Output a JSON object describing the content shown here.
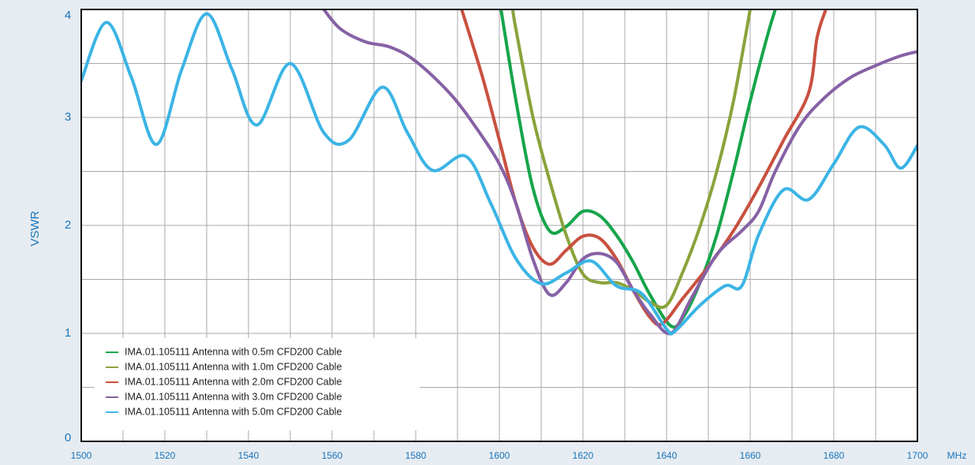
{
  "chart_data": {
    "type": "line",
    "xlabel": "MHz",
    "ylabel": "VSWR",
    "xlim": [
      1500,
      1700
    ],
    "xticks": [
      1500,
      1520,
      1540,
      1560,
      1580,
      1600,
      1620,
      1640,
      1660,
      1680,
      1700
    ],
    "x_minor_ticks": [
      1510,
      1530,
      1550,
      1570,
      1590,
      1610,
      1630,
      1650,
      1670,
      1690
    ],
    "ylim": [
      0,
      4
    ],
    "yticks": [
      0,
      1,
      2,
      3,
      4
    ],
    "y_minor_ticks": [
      0.5,
      1.5,
      2.5,
      3.5
    ],
    "grid": true,
    "legend": "lower left",
    "series": [
      {
        "name": "IMA.01.105111 Antenna with 0.5m CFD200 Cable",
        "color": "#16a54b",
        "x": [
          1600.4,
          1604,
          1608,
          1612,
          1616,
          1620,
          1624,
          1628,
          1632,
          1636,
          1641,
          1644,
          1648,
          1652,
          1656,
          1660,
          1664,
          1666
        ],
        "values": [
          4.0,
          3.15,
          2.35,
          1.95,
          1.99,
          2.13,
          2.09,
          1.91,
          1.66,
          1.36,
          1.07,
          1.15,
          1.47,
          1.91,
          2.5,
          3.15,
          3.74,
          4.0
        ]
      },
      {
        "name": "IMA.01.105111 Antenna with 1.0m CFD200 Cable",
        "color": "#8aa33b",
        "x": [
          1603.2,
          1604,
          1608,
          1612,
          1616,
          1620,
          1624,
          1628,
          1632,
          1636,
          1640,
          1644,
          1648,
          1652,
          1656,
          1660
        ],
        "values": [
          4.0,
          3.81,
          3.01,
          2.42,
          1.91,
          1.55,
          1.47,
          1.47,
          1.4,
          1.29,
          1.26,
          1.58,
          1.99,
          2.5,
          3.15,
          4.0
        ]
      },
      {
        "name": "IMA.01.105111 Antenna with 2.0m CFD200 Cable",
        "color": "#c9503f",
        "x": [
          1591,
          1596,
          1600,
          1604,
          1608,
          1612,
          1616,
          1620,
          1624,
          1628,
          1632,
          1636,
          1639,
          1644,
          1650,
          1656,
          1662,
          1668,
          1674,
          1676,
          1678
        ],
        "values": [
          4.0,
          3.37,
          2.79,
          2.2,
          1.8,
          1.64,
          1.77,
          1.9,
          1.88,
          1.69,
          1.4,
          1.15,
          1.09,
          1.33,
          1.62,
          1.95,
          2.35,
          2.79,
          3.23,
          3.74,
          3.99
        ]
      },
      {
        "name": "IMA.01.105111 Antenna with 3.0m CFD200 Cable",
        "color": "#8661a5",
        "x": [
          1558,
          1562,
          1568,
          1574,
          1580,
          1588,
          1594,
          1600,
          1604,
          1608,
          1612,
          1616,
          1620,
          1624,
          1628,
          1632,
          1636,
          1641,
          1646,
          1652,
          1658,
          1662,
          1666,
          1672,
          1678,
          1684,
          1690,
          1696,
          1700
        ],
        "values": [
          4.0,
          3.82,
          3.7,
          3.65,
          3.52,
          3.23,
          2.93,
          2.57,
          2.2,
          1.69,
          1.36,
          1.47,
          1.69,
          1.74,
          1.66,
          1.4,
          1.18,
          1.0,
          1.33,
          1.73,
          1.95,
          2.13,
          2.5,
          2.93,
          3.19,
          3.37,
          3.48,
          3.57,
          3.61
        ]
      },
      {
        "name": "IMA.01.105111 Antenna with 5.0m CFD200 Cable",
        "color": "#3bb4e5",
        "x": [
          1500,
          1506,
          1512,
          1518,
          1524,
          1530,
          1536,
          1542,
          1550,
          1558,
          1564,
          1572,
          1578,
          1584,
          1592,
          1598,
          1604,
          1610,
          1616,
          1622,
          1628,
          1634,
          1640,
          1642,
          1648,
          1654,
          1658,
          1662,
          1668,
          1674,
          1680,
          1686,
          1692,
          1696,
          1700
        ],
        "values": [
          3.34,
          3.88,
          3.37,
          2.75,
          3.44,
          3.96,
          3.45,
          2.93,
          3.5,
          2.86,
          2.79,
          3.28,
          2.86,
          2.51,
          2.64,
          2.2,
          1.69,
          1.46,
          1.56,
          1.67,
          1.44,
          1.37,
          1.04,
          1.02,
          1.26,
          1.44,
          1.44,
          1.91,
          2.33,
          2.24,
          2.57,
          2.91,
          2.75,
          2.53,
          2.74
        ]
      }
    ]
  }
}
